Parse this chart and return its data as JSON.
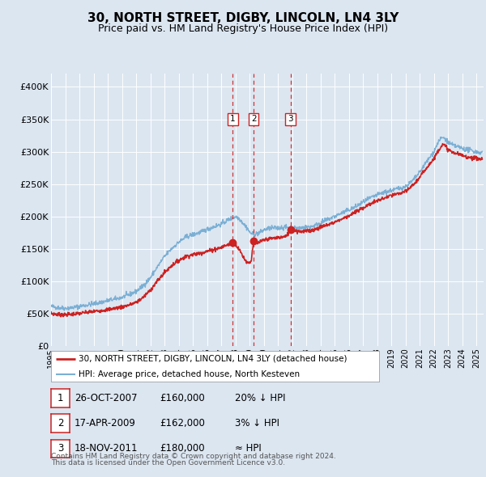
{
  "title": "30, NORTH STREET, DIGBY, LINCOLN, LN4 3LY",
  "subtitle": "Price paid vs. HM Land Registry's House Price Index (HPI)",
  "title_fontsize": 11,
  "subtitle_fontsize": 9,
  "background_color": "#dce6f1",
  "ylim": [
    0,
    420000
  ],
  "yticks": [
    0,
    50000,
    100000,
    150000,
    200000,
    250000,
    300000,
    350000,
    400000
  ],
  "ytick_labels": [
    "£0",
    "£50K",
    "£100K",
    "£150K",
    "£200K",
    "£250K",
    "£300K",
    "£350K",
    "£400K"
  ],
  "xlim_start": 1995.0,
  "xlim_end": 2025.5,
  "hpi_color": "#7bafd4",
  "price_color": "#cc2222",
  "sale_marker_color": "#cc2222",
  "vline_color": "#cc2222",
  "grid_color": "#ffffff",
  "legend_label_price": "30, NORTH STREET, DIGBY, LINCOLN, LN4 3LY (detached house)",
  "legend_label_hpi": "HPI: Average price, detached house, North Kesteven",
  "sales": [
    {
      "num": 1,
      "date_num": 2007.82,
      "price": 160000,
      "label": "26-OCT-2007",
      "amount": "£160,000",
      "hpi_rel": "20% ↓ HPI"
    },
    {
      "num": 2,
      "date_num": 2009.29,
      "price": 162000,
      "label": "17-APR-2009",
      "amount": "£162,000",
      "hpi_rel": "3% ↓ HPI"
    },
    {
      "num": 3,
      "date_num": 2011.88,
      "price": 180000,
      "label": "18-NOV-2011",
      "amount": "£180,000",
      "hpi_rel": "≈ HPI"
    }
  ],
  "footer_line1": "Contains HM Land Registry data © Crown copyright and database right 2024.",
  "footer_line2": "This data is licensed under the Open Government Licence v3.0.",
  "xtick_years": [
    1995,
    1996,
    1997,
    1998,
    1999,
    2000,
    2001,
    2002,
    2003,
    2004,
    2005,
    2006,
    2007,
    2008,
    2009,
    2010,
    2011,
    2012,
    2013,
    2014,
    2015,
    2016,
    2017,
    2018,
    2019,
    2020,
    2021,
    2022,
    2023,
    2024,
    2025
  ]
}
